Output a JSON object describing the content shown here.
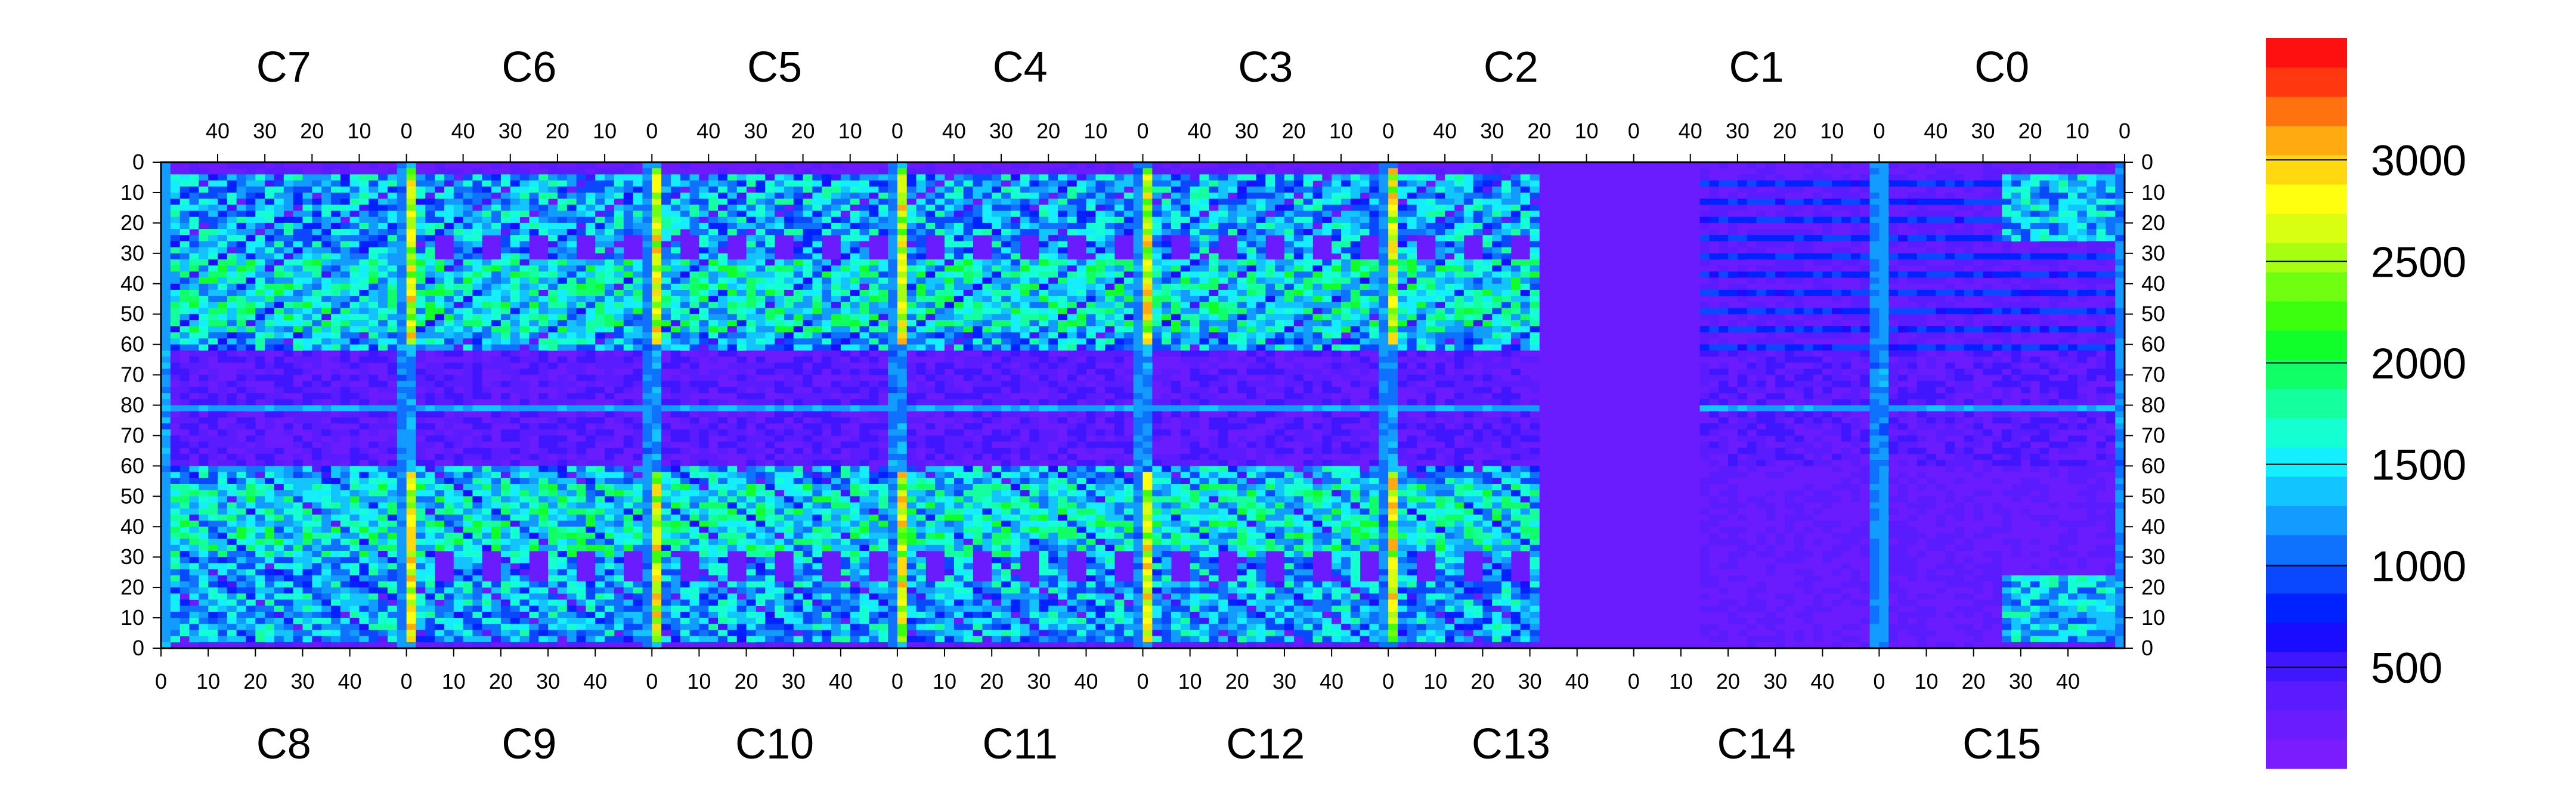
{
  "chart_data": {
    "type": "heatmap",
    "title": "",
    "xlabel": "",
    "ylabel": "",
    "top_chips": [
      "C7",
      "C6",
      "C5",
      "C4",
      "C3",
      "C2",
      "C1",
      "C0"
    ],
    "bottom_chips": [
      "C8",
      "C9",
      "C10",
      "C11",
      "C12",
      "C13",
      "C14",
      "C15"
    ],
    "cols_per_chip": 52,
    "rows_per_half": 80,
    "top_x_ticks": [
      40,
      30,
      20,
      10,
      0
    ],
    "bottom_x_ticks": [
      0,
      10,
      20,
      30,
      40
    ],
    "y_ticks_top": [
      0,
      10,
      20,
      30,
      40,
      50,
      60,
      70,
      80
    ],
    "y_ticks_bottom": [
      70,
      60,
      50,
      40,
      30,
      20,
      10,
      0
    ],
    "colorbar": {
      "min": 0,
      "max": 3600,
      "ticks": [
        500,
        1000,
        1500,
        2000,
        2500,
        3000
      ],
      "palette": [
        "#7a1cff",
        "#6a1cff",
        "#5a1cff",
        "#4015ff",
        "#1a0cff",
        "#0022ff",
        "#0a48ff",
        "#0e72ff",
        "#129cff",
        "#12c4ff",
        "#14eeff",
        "#14ffd2",
        "#14ff9e",
        "#10ff66",
        "#10ff2a",
        "#3cff10",
        "#70ff10",
        "#a6ff10",
        "#d8ff10",
        "#ffff10",
        "#ffd810",
        "#ffaa10",
        "#ff7210",
        "#ff3810",
        "#ff1010"
      ]
    },
    "approx_levels": {
      "background": 150,
      "sensor_rows_mid": 1300,
      "bright_columns": 3100,
      "dead_region": 80,
      "central_row": 1150
    }
  }
}
